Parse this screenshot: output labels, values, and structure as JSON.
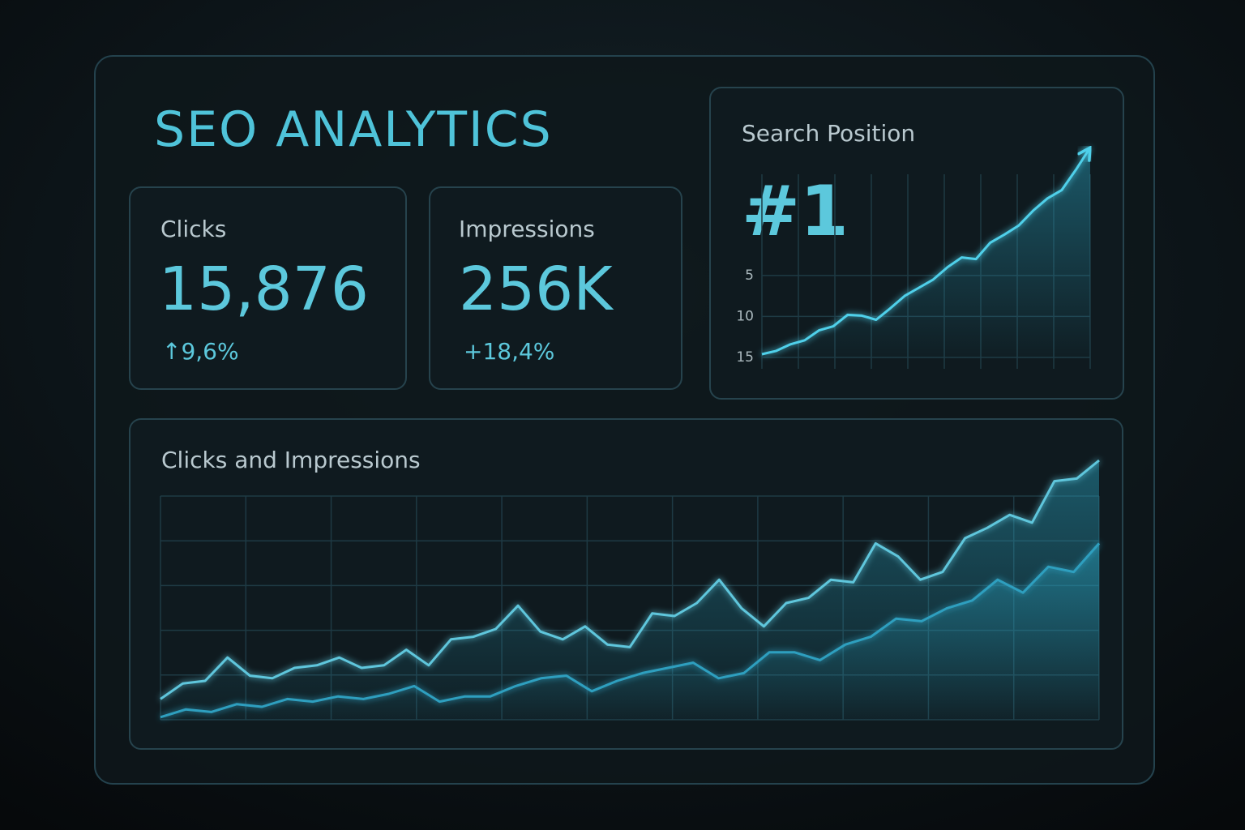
{
  "header": {
    "title": "SEO ANALYTICS"
  },
  "cards": [
    {
      "label": "Clicks",
      "value": "15,876",
      "change": "↑9,6%"
    },
    {
      "label": "Impressions",
      "value": "256K",
      "change": "+18,4%"
    }
  ],
  "chart_data": [
    {
      "type": "line",
      "title": "Search Position",
      "headline": "#1",
      "color": "#4fd0ea",
      "ylim": [
        15,
        -11
      ],
      "yticks": [
        5,
        10,
        15
      ],
      "grid": true,
      "values": [
        14.6,
        14.2,
        13.4,
        12.9,
        11.7,
        11.2,
        9.8,
        9.9,
        10.4,
        9.0,
        7.5,
        6.5,
        5.5,
        4.0,
        2.8,
        3.0,
        1.0,
        0.0,
        -1.1,
        -2.9,
        -4.4,
        -5.4,
        -7.9,
        -10.6
      ]
    },
    {
      "type": "line",
      "title": "Clicks and Impressions",
      "ylim": [
        0,
        100
      ],
      "grid": true,
      "series": [
        {
          "color": "#5fc6dc",
          "values": [
            8,
            14,
            15,
            24,
            17,
            16,
            20,
            21,
            24,
            20,
            21,
            27,
            21,
            31,
            32,
            35,
            44,
            34,
            31,
            36,
            29,
            28,
            41,
            40,
            45,
            54,
            43,
            36,
            45,
            47,
            54,
            53,
            68,
            63,
            54,
            57,
            70,
            74,
            79,
            76,
            92,
            93,
            100
          ]
        },
        {
          "color": "#2f9fbf",
          "values": [
            1,
            4,
            3,
            6,
            5,
            8,
            7,
            9,
            8,
            10,
            13,
            7,
            9,
            9,
            13,
            16,
            17,
            11,
            15,
            18,
            20,
            22,
            16,
            18,
            26,
            26,
            23,
            29,
            32,
            39,
            38,
            43,
            46,
            54,
            49,
            59,
            57,
            68
          ]
        }
      ]
    }
  ]
}
